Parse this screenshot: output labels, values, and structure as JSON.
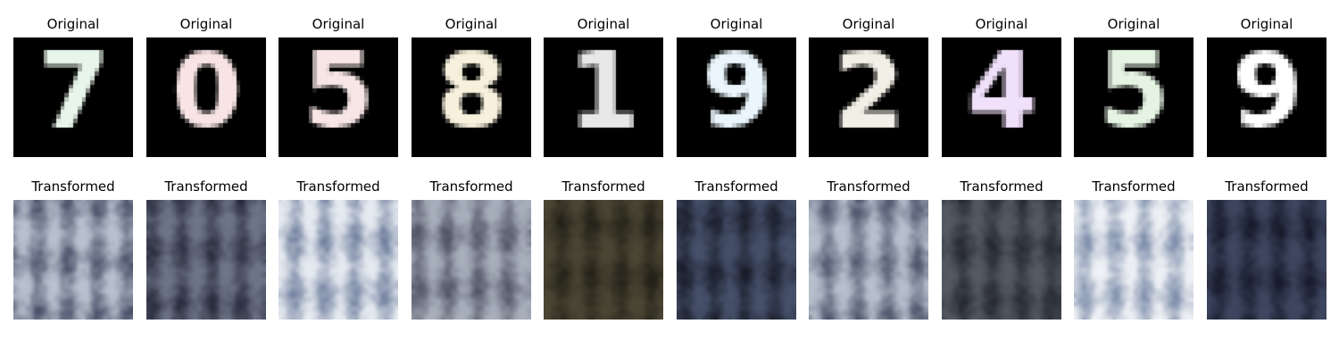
{
  "figure": {
    "rows": [
      {
        "row_title": "Original",
        "panels": [
          {
            "digit": "7",
            "ink": "#e8f5ea"
          },
          {
            "digit": "0",
            "ink": "#f8e4e4"
          },
          {
            "digit": "5",
            "ink": "#f8e6e6"
          },
          {
            "digit": "8",
            "ink": "#f6f0dc"
          },
          {
            "digit": "1",
            "ink": "#e8e8e8"
          },
          {
            "digit": "9",
            "ink": "#eaf6fc"
          },
          {
            "digit": "2",
            "ink": "#f2efe6"
          },
          {
            "digit": "4",
            "ink": "#f0e0fa"
          },
          {
            "digit": "5",
            "ink": "#e6f4e4"
          },
          {
            "digit": "9",
            "ink": "#ffffff"
          }
        ]
      },
      {
        "row_title": "Transformed",
        "panels": [
          {
            "base": "#b9c1cf",
            "dark": "#4a5068",
            "seed": 3
          },
          {
            "base": "#6e7588",
            "dark": "#26293a",
            "seed": 7
          },
          {
            "base": "#e6ebf1",
            "dark": "#6b7a9a",
            "seed": 11
          },
          {
            "base": "#a9b0bd",
            "dark": "#4b4f5f",
            "seed": 13
          },
          {
            "base": "#4a4634",
            "dark": "#221f17",
            "seed": 17
          },
          {
            "base": "#46506a",
            "dark": "#161a26",
            "seed": 19
          },
          {
            "base": "#b7c0cd",
            "dark": "#4c536a",
            "seed": 23
          },
          {
            "base": "#545a64",
            "dark": "#23262e",
            "seed": 29
          },
          {
            "base": "#eef1f5",
            "dark": "#7a8aa8",
            "seed": 31
          },
          {
            "base": "#3e4660",
            "dark": "#141827",
            "seed": 37
          }
        ]
      }
    ]
  }
}
